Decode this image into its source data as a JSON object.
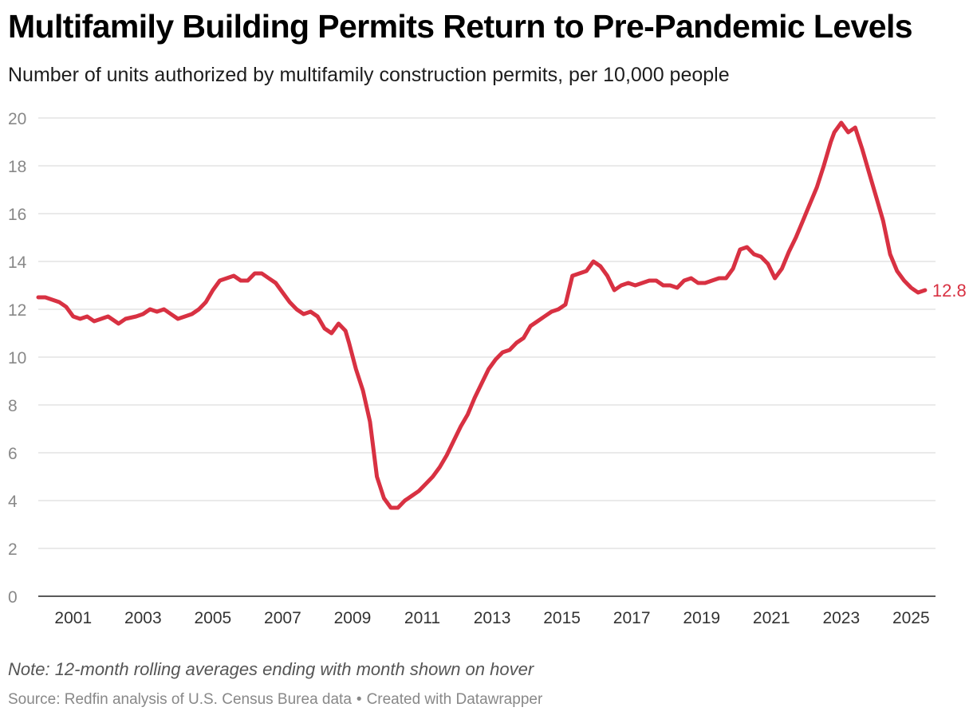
{
  "header": {
    "title": "Multifamily Building Permits Return to Pre-Pandemic Levels",
    "subtitle": "Number of units authorized by multifamily construction permits, per 10,000 people"
  },
  "footer": {
    "note": "Note: 12-month rolling averages ending with month shown on hover",
    "source": "Source: Redfin analysis of U.S. Census Burea data",
    "separator": "•",
    "credit": "Created with Datawrapper"
  },
  "colors": {
    "line": "#d83142",
    "grid": "#dddddd",
    "axis": "#222222",
    "tick_label": "#888888",
    "x_tick_label": "#333333"
  },
  "chart_data": {
    "type": "line",
    "title": "Multifamily Building Permits Return to Pre-Pandemic Levels",
    "subtitle": "Number of units authorized by multifamily construction permits, per 10,000 people",
    "xlabel": "",
    "ylabel": "",
    "xlim": [
      2000,
      2025.7
    ],
    "ylim": [
      0,
      20
    ],
    "y_ticks": [
      0,
      2,
      4,
      6,
      8,
      10,
      12,
      14,
      16,
      18,
      20
    ],
    "x_ticks": [
      2001,
      2003,
      2005,
      2007,
      2009,
      2011,
      2013,
      2015,
      2017,
      2019,
      2021,
      2023,
      2025
    ],
    "x_tick_labels": [
      "2001",
      "2003",
      "2005",
      "2007",
      "2009",
      "2011",
      "2013",
      "2015",
      "2017",
      "2019",
      "2021",
      "2023",
      "2025"
    ],
    "grid": true,
    "legend": "none",
    "last_value_label": "12.8",
    "series": [
      {
        "x": [
          2000.0,
          2000.2,
          2000.4,
          2000.6,
          2000.8,
          2001.0,
          2001.2,
          2001.4,
          2001.6,
          2001.8,
          2002.0,
          2002.3,
          2002.5,
          2002.8,
          2003.0,
          2003.2,
          2003.4,
          2003.6,
          2003.8,
          2004.0,
          2004.2,
          2004.4,
          2004.6,
          2004.8,
          2005.0,
          2005.2,
          2005.4,
          2005.6,
          2005.8,
          2006.0,
          2006.2,
          2006.4,
          2006.6,
          2006.8,
          2007.0,
          2007.2,
          2007.4,
          2007.6,
          2007.8,
          2008.0,
          2008.2,
          2008.4,
          2008.6,
          2008.8,
          2008.9,
          2009.1,
          2009.3,
          2009.5,
          2009.7,
          2009.9,
          2010.1,
          2010.3,
          2010.5,
          2010.7,
          2010.9,
          2011.1,
          2011.3,
          2011.5,
          2011.7,
          2011.9,
          2012.1,
          2012.3,
          2012.5,
          2012.7,
          2012.9,
          2013.1,
          2013.3,
          2013.5,
          2013.7,
          2013.9,
          2014.1,
          2014.3,
          2014.5,
          2014.7,
          2014.9,
          2015.1,
          2015.3,
          2015.5,
          2015.7,
          2015.9,
          2016.1,
          2016.3,
          2016.5,
          2016.7,
          2016.9,
          2017.1,
          2017.3,
          2017.5,
          2017.7,
          2017.9,
          2018.1,
          2018.3,
          2018.5,
          2018.7,
          2018.9,
          2019.1,
          2019.3,
          2019.5,
          2019.7,
          2019.9,
          2020.1,
          2020.3,
          2020.5,
          2020.7,
          2020.9,
          2021.1,
          2021.3,
          2021.5,
          2021.7,
          2021.9,
          2022.1,
          2022.3,
          2022.5,
          2022.7,
          2022.8,
          2023.0,
          2023.2,
          2023.4,
          2023.6,
          2023.8,
          2024.0,
          2024.2,
          2024.4,
          2024.6,
          2024.8,
          2025.0,
          2025.2,
          2025.4
        ],
        "values": [
          12.5,
          12.5,
          12.4,
          12.3,
          12.1,
          11.7,
          11.6,
          11.7,
          11.5,
          11.6,
          11.7,
          11.4,
          11.6,
          11.7,
          11.8,
          12.0,
          11.9,
          12.0,
          11.8,
          11.6,
          11.7,
          11.8,
          12.0,
          12.3,
          12.8,
          13.2,
          13.3,
          13.4,
          13.2,
          13.2,
          13.5,
          13.5,
          13.3,
          13.1,
          12.7,
          12.3,
          12.0,
          11.8,
          11.9,
          11.7,
          11.2,
          11.0,
          11.4,
          11.1,
          10.6,
          9.5,
          8.6,
          7.3,
          5.0,
          4.1,
          3.7,
          3.7,
          4.0,
          4.2,
          4.4,
          4.7,
          5.0,
          5.4,
          5.9,
          6.5,
          7.1,
          7.6,
          8.3,
          8.9,
          9.5,
          9.9,
          10.2,
          10.3,
          10.6,
          10.8,
          11.3,
          11.5,
          11.7,
          11.9,
          12.0,
          12.2,
          13.4,
          13.5,
          13.6,
          14.0,
          13.8,
          13.4,
          12.8,
          13.0,
          13.1,
          13.0,
          13.1,
          13.2,
          13.2,
          13.0,
          13.0,
          12.9,
          13.2,
          13.3,
          13.1,
          13.1,
          13.2,
          13.3,
          13.3,
          13.7,
          14.5,
          14.6,
          14.3,
          14.2,
          13.9,
          13.3,
          13.7,
          14.4,
          15.0,
          15.7,
          16.4,
          17.1,
          18.0,
          19.0,
          19.4,
          19.8,
          19.4,
          19.6,
          18.7,
          17.7,
          16.7,
          15.7,
          14.3,
          13.6,
          13.2,
          12.9,
          12.7,
          12.8
        ]
      }
    ]
  }
}
